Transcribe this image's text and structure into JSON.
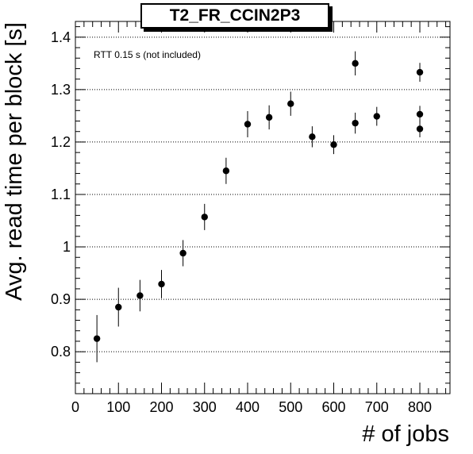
{
  "chart_data": {
    "type": "scatter",
    "title": "T2_FR_CCIN2P3",
    "xlabel": "# of jobs",
    "ylabel": "Avg. read time per block [s]",
    "annotation": "RTT 0.15 s (not included)",
    "xlim": [
      0,
      870
    ],
    "ylim": [
      0.72,
      1.43
    ],
    "xticks": [
      0,
      100,
      200,
      300,
      400,
      500,
      600,
      700,
      800
    ],
    "xtick_labels": [
      "0",
      "100",
      "200",
      "300",
      "400",
      "500",
      "600",
      "700",
      "800"
    ],
    "yticks": [
      0.8,
      0.9,
      1.0,
      1.1,
      1.2,
      1.3,
      1.4
    ],
    "ytick_labels": [
      "0.8",
      "0.9",
      "1",
      "1.1",
      "1.2",
      "1.3",
      "1.4"
    ],
    "grid_y": true,
    "grid_x": false,
    "points": [
      {
        "x": 50,
        "y": 0.825,
        "err": 0.045
      },
      {
        "x": 100,
        "y": 0.885,
        "err": 0.037
      },
      {
        "x": 150,
        "y": 0.907,
        "err": 0.03
      },
      {
        "x": 200,
        "y": 0.929,
        "err": 0.027
      },
      {
        "x": 250,
        "y": 0.988,
        "err": 0.025
      },
      {
        "x": 300,
        "y": 1.057,
        "err": 0.025
      },
      {
        "x": 350,
        "y": 1.145,
        "err": 0.025
      },
      {
        "x": 400,
        "y": 1.234,
        "err": 0.025
      },
      {
        "x": 450,
        "y": 1.247,
        "err": 0.023
      },
      {
        "x": 500,
        "y": 1.273,
        "err": 0.023
      },
      {
        "x": 550,
        "y": 1.21,
        "err": 0.02
      },
      {
        "x": 600,
        "y": 1.195,
        "err": 0.018
      },
      {
        "x": 650,
        "y": 1.35,
        "err": 0.023
      },
      {
        "x": 650,
        "y": 1.236,
        "err": 0.02
      },
      {
        "x": 700,
        "y": 1.249,
        "err": 0.018
      },
      {
        "x": 800,
        "y": 1.333,
        "err": 0.018
      },
      {
        "x": 800,
        "y": 1.253,
        "err": 0.016
      },
      {
        "x": 800,
        "y": 1.225,
        "err": 0.016
      }
    ]
  }
}
